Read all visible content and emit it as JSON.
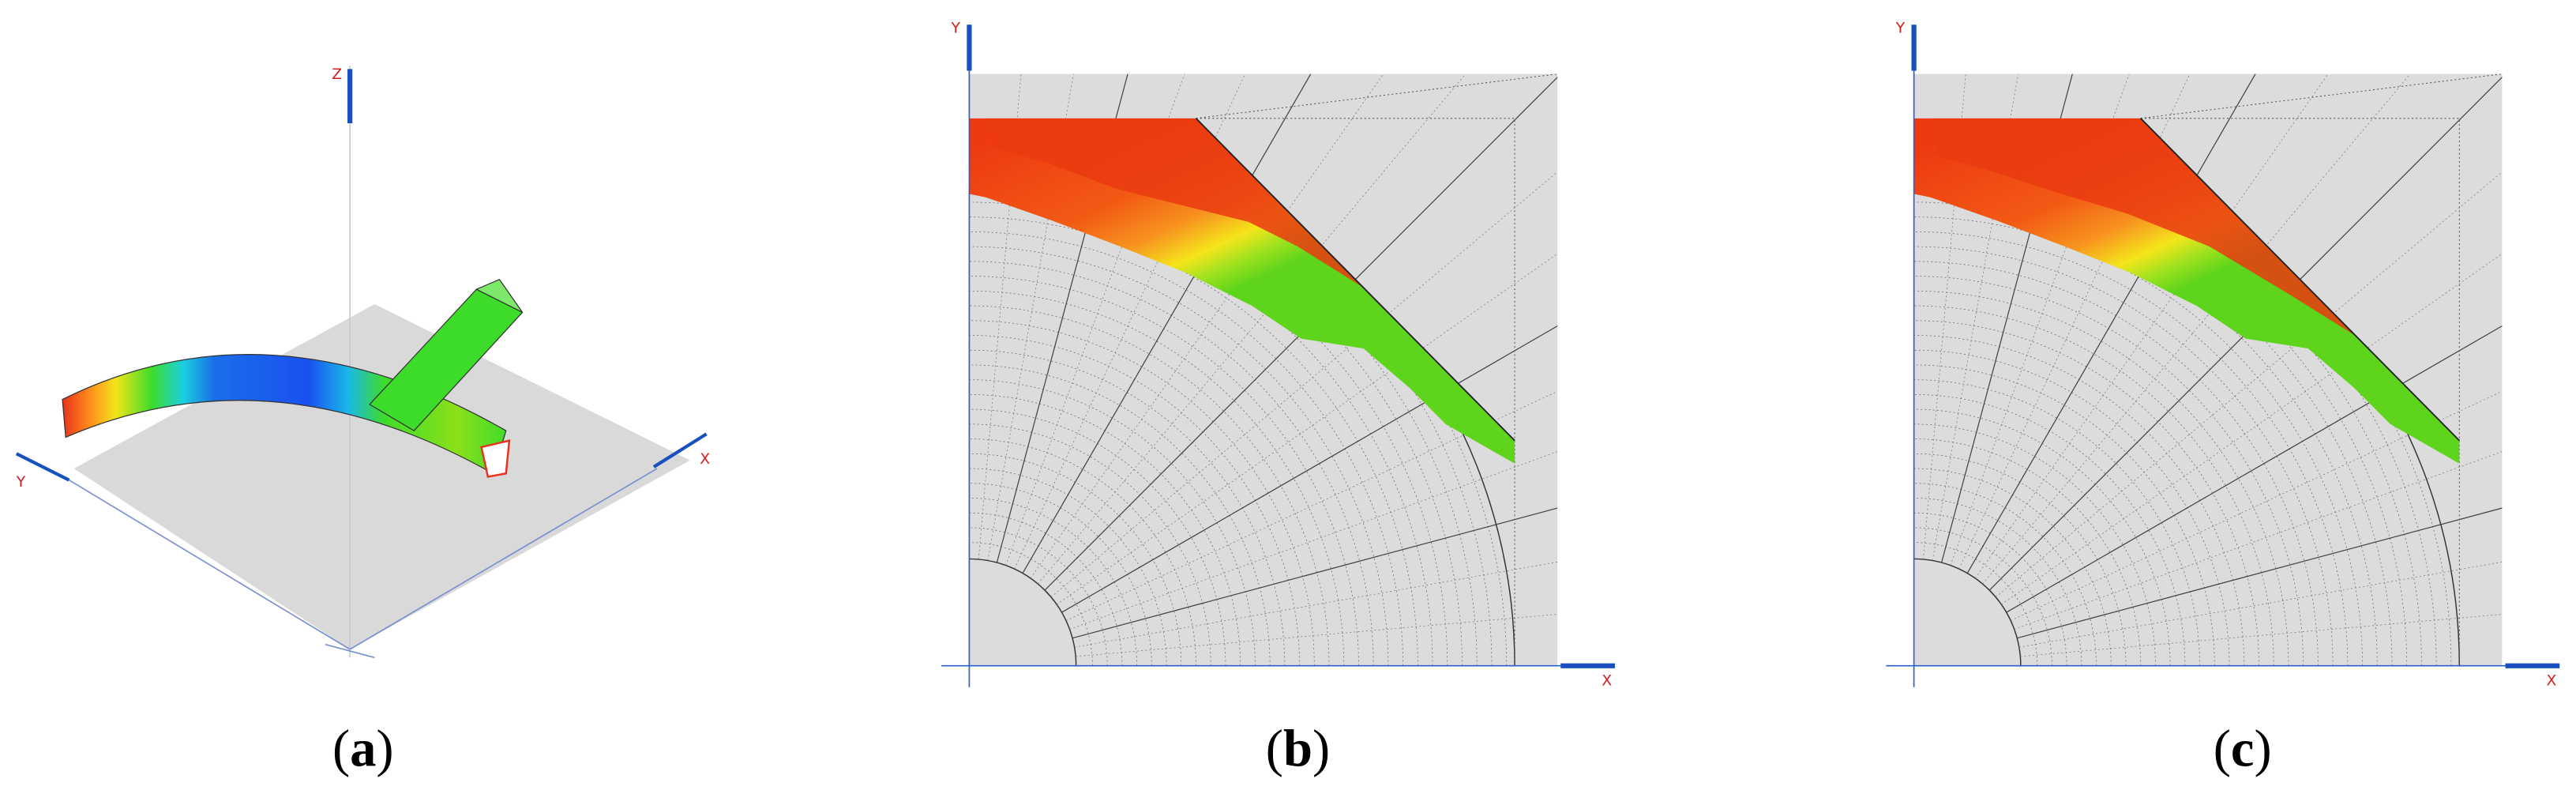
{
  "panels": [
    {
      "caption": [
        "(",
        "a",
        ")"
      ],
      "axis_labels": {
        "z": "Z",
        "y": "Y",
        "x": "X"
      }
    },
    {
      "caption": [
        "(",
        "b",
        ")"
      ],
      "axis_labels": {
        "y": "Y",
        "x": "X"
      }
    },
    {
      "caption": [
        "(",
        "c",
        ")"
      ],
      "axis_labels": {
        "y": "Y",
        "x": "X"
      }
    }
  ]
}
